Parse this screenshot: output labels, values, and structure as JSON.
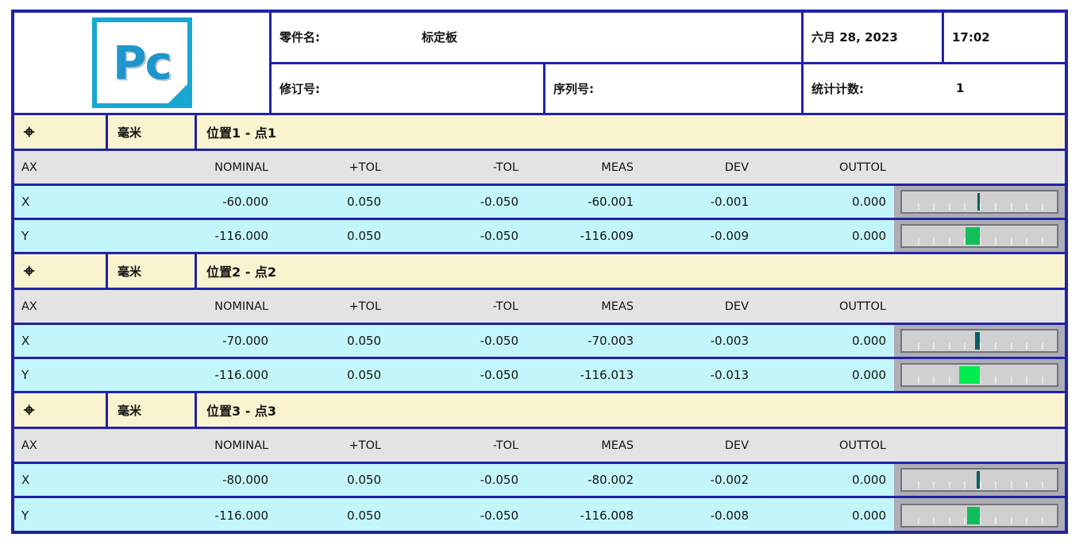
{
  "header": {
    "logo_text": "Pc",
    "part_name_label": "零件名:",
    "part_name_value": "标定板",
    "date": "六月 28, 2023",
    "time": "17:02",
    "revision_label": "修订号:",
    "revision_value": "",
    "serial_label": "序列号:",
    "serial_value": "",
    "stat_count_label": "统计计数:",
    "stat_count_value": "1"
  },
  "columns": [
    "AX",
    "NOMINAL",
    "+TOL",
    "-TOL",
    "MEAS",
    "DEV",
    "OUTTOL"
  ],
  "colors": {
    "border_navy": "#2122a8",
    "section_yellow": "#faf3cf",
    "row_cyan": "#c3f6fa",
    "header_gray": "#e3e3e3",
    "bar_cell_silver": "#adaeb5",
    "bar_track": "#d0d0d0",
    "logo_cyan": "#18a7d2"
  },
  "sections": [
    {
      "icon": "⌖",
      "icon_name": "true-position-symbol",
      "unit": "毫米",
      "title": "位置1 - 点1",
      "rows": [
        {
          "ax": "X",
          "nominal": "-60.000",
          "ptol": "0.050",
          "ntol": "-0.050",
          "meas": "-60.001",
          "dev": "-0.001",
          "outtol": "0.000",
          "dev_num": -0.001,
          "tol": 0.05,
          "bar_color": "#065f63"
        },
        {
          "ax": "Y",
          "nominal": "-116.000",
          "ptol": "0.050",
          "ntol": "-0.050",
          "meas": "-116.009",
          "dev": "-0.009",
          "outtol": "0.000",
          "dev_num": -0.009,
          "tol": 0.05,
          "bar_color": "#12bd5c"
        }
      ]
    },
    {
      "icon": "⌖",
      "icon_name": "true-position-symbol",
      "unit": "毫米",
      "title": "位置2 - 点2",
      "rows": [
        {
          "ax": "X",
          "nominal": "-70.000",
          "ptol": "0.050",
          "ntol": "-0.050",
          "meas": "-70.003",
          "dev": "-0.003",
          "outtol": "0.000",
          "dev_num": -0.003,
          "tol": 0.05,
          "bar_color": "#065f63"
        },
        {
          "ax": "Y",
          "nominal": "-116.000",
          "ptol": "0.050",
          "ntol": "-0.050",
          "meas": "-116.013",
          "dev": "-0.013",
          "outtol": "0.000",
          "dev_num": -0.013,
          "tol": 0.05,
          "bar_color": "#00eb4f"
        }
      ]
    },
    {
      "icon": "⌖",
      "icon_name": "true-position-symbol",
      "unit": "毫米",
      "title": "位置3 - 点3",
      "rows": [
        {
          "ax": "X",
          "nominal": "-80.000",
          "ptol": "0.050",
          "ntol": "-0.050",
          "meas": "-80.002",
          "dev": "-0.002",
          "outtol": "0.000",
          "dev_num": -0.002,
          "tol": 0.05,
          "bar_color": "#065f63"
        },
        {
          "ax": "Y",
          "nominal": "-116.000",
          "ptol": "0.050",
          "ntol": "-0.050",
          "meas": "-116.008",
          "dev": "-0.008",
          "outtol": "0.000",
          "dev_num": -0.008,
          "tol": 0.05,
          "bar_color": "#0fbe5a"
        }
      ]
    }
  ]
}
